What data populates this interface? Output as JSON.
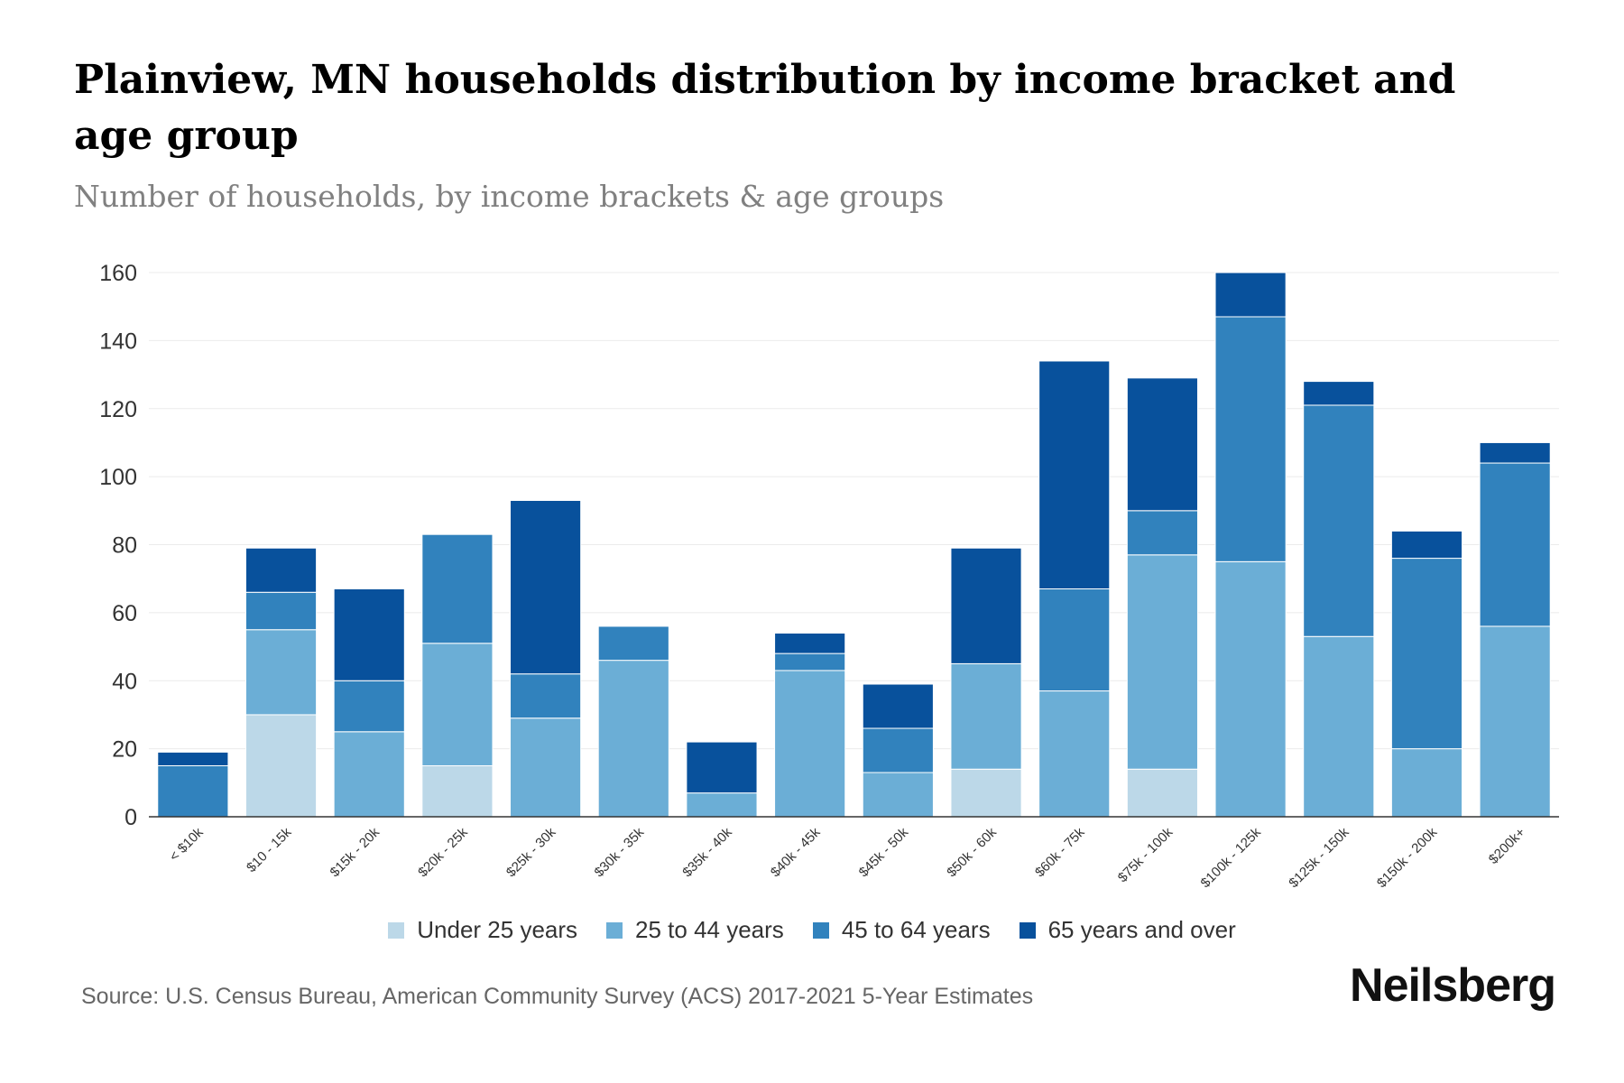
{
  "header": {
    "title": "Plainview, MN households distribution by income bracket and age group",
    "subtitle": "Number of households, by income brackets & age groups"
  },
  "footer": {
    "source": "Source: U.S. Census Bureau, American Community Survey (ACS) 2017-2021 5-Year Estimates",
    "brand": "Neilsberg"
  },
  "chart_data": {
    "type": "bar",
    "stacked": true,
    "categories": [
      "< $10k",
      "$10 - 15k",
      "$15k - 20k",
      "$20k - 25k",
      "$25k - 30k",
      "$30k - 35k",
      "$35k - 40k",
      "$40k - 45k",
      "$45k - 50k",
      "$50k - 60k",
      "$60k - 75k",
      "$75k - 100k",
      "$100k - 125k",
      "$125k - 150k",
      "$150k - 200k",
      "$200k+"
    ],
    "series": [
      {
        "name": "Under 25 years",
        "color": "#bcd8e8",
        "values": [
          0,
          30,
          0,
          15,
          0,
          0,
          0,
          0,
          0,
          14,
          0,
          14,
          0,
          0,
          0,
          0
        ]
      },
      {
        "name": "25 to 44 years",
        "color": "#6baed6",
        "values": [
          0,
          25,
          25,
          36,
          29,
          46,
          7,
          43,
          13,
          31,
          37,
          63,
          75,
          53,
          20,
          56
        ]
      },
      {
        "name": "45 to 64 years",
        "color": "#3182bd",
        "values": [
          15,
          11,
          15,
          32,
          13,
          10,
          0,
          5,
          13,
          0,
          30,
          13,
          72,
          68,
          56,
          48
        ]
      },
      {
        "name": "65 years and over",
        "color": "#08519c",
        "values": [
          4,
          13,
          27,
          0,
          51,
          0,
          15,
          6,
          13,
          34,
          67,
          39,
          13,
          7,
          8,
          6
        ]
      }
    ],
    "yticks": [
      0,
      20,
      40,
      60,
      80,
      100,
      120,
      140,
      160
    ],
    "ylim": [
      0,
      160
    ],
    "xlabel": "",
    "ylabel": "",
    "grid": true,
    "legend_position": "bottom"
  }
}
